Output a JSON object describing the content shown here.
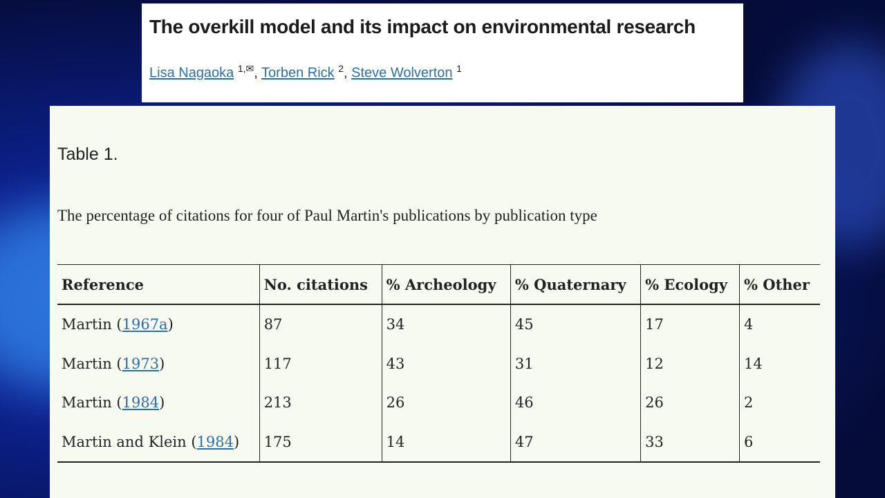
{
  "header": {
    "title": "The overkill model and its impact on environmental research",
    "authors": [
      {
        "name": "Lisa Nagaoka",
        "sup": "1,✉",
        "sep": ","
      },
      {
        "name": "Torben Rick",
        "sup": "2",
        "sep": ","
      },
      {
        "name": "Steve Wolverton",
        "sup": "1"
      }
    ]
  },
  "table": {
    "label": "Table 1.",
    "caption": "The percentage of citations for four of Paul Martin's publications by publication type",
    "columns": [
      "Reference",
      "No. citations",
      "% Archeology",
      "% Quaternary",
      "% Ecology",
      "% Other"
    ],
    "rows": [
      [
        {
          "prefix": "Martin (",
          "link": "1967a",
          "suffix": ")"
        },
        87,
        34,
        45,
        17,
        4
      ],
      [
        {
          "prefix": "Martin (",
          "link": "1973",
          "suffix": ")"
        },
        117,
        43,
        31,
        12,
        14
      ],
      [
        {
          "prefix": "Martin (",
          "link": "1984",
          "suffix": ")"
        },
        213,
        26,
        46,
        26,
        2
      ],
      [
        {
          "prefix": "Martin and Klein (",
          "link": "1984",
          "suffix": ")"
        },
        175,
        14,
        47,
        33,
        6
      ]
    ]
  }
}
